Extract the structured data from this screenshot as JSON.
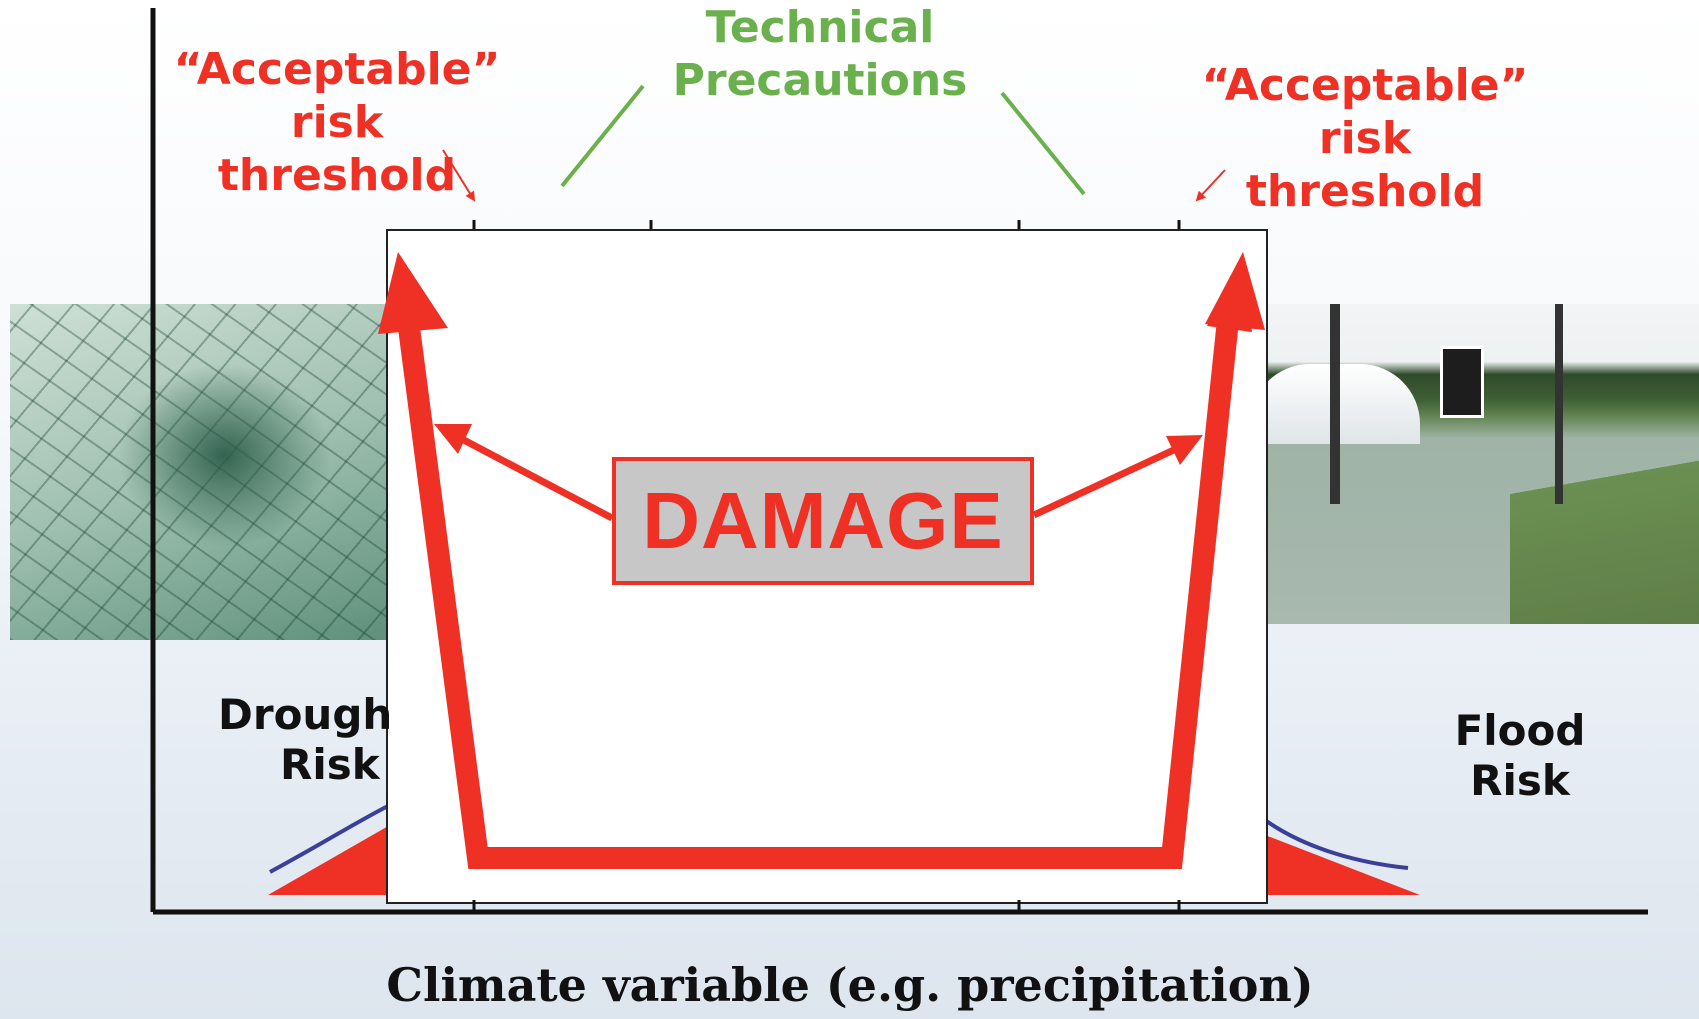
{
  "labels": {
    "technical_precautions_line1": "Technical",
    "technical_precautions_line2": "Precautions",
    "left_threshold_line1": "“Acceptable”",
    "left_threshold_line2": "risk threshold",
    "right_threshold_line1": "“Acceptable”",
    "right_threshold_line2": "risk threshold",
    "drought_line1": "Drough",
    "drought_line2": "Risk",
    "flood_line1": "Flood",
    "flood_line2": "Risk",
    "damage": "DAMAGE",
    "x_axis": "Climate variable (e.g. precipitation)"
  },
  "colors": {
    "red": "#ee3124",
    "green": "#6ab04c",
    "blue": "#3b3f9a",
    "damage_fill": "#c7c7c7"
  },
  "images": {
    "left_photo": "drought-cracked-soil-plant",
    "right_photo": "flooded-field-with-sign"
  }
}
